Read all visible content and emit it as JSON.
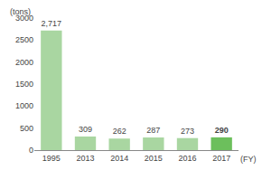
{
  "chart_data": {
    "type": "bar",
    "ylabel": "(tons)",
    "xlabel": "(FY)",
    "categories": [
      "1995",
      "2013",
      "2014",
      "2015",
      "2016",
      "2017"
    ],
    "values": [
      2717,
      309,
      262,
      287,
      273,
      290
    ],
    "value_labels": [
      "2,717",
      "309",
      "262",
      "287",
      "273",
      "290"
    ],
    "data_labels": true,
    "colors": [
      "#a9d6a1",
      "#a9d6a1",
      "#a9d6a1",
      "#a9d6a1",
      "#a9d6a1",
      "#6cbf5c"
    ],
    "ylim": [
      0,
      3000
    ],
    "yticks": [
      0,
      500,
      1000,
      1500,
      2000,
      2500,
      3000
    ],
    "grid": false
  }
}
